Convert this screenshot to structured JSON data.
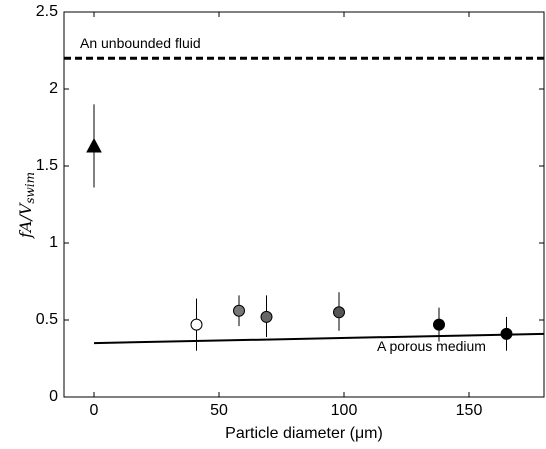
{
  "chart_data": {
    "type": "scatter",
    "xlabel": "Particle diameter (μm)",
    "ylabel": {
      "main": "fA/V",
      "sub": "swim"
    },
    "xlim": [
      -12,
      180
    ],
    "xticks": [
      0,
      50,
      100,
      150
    ],
    "ylim": [
      0,
      2.5
    ],
    "yticks": [
      0,
      0.5,
      1,
      1.5,
      2,
      2.5
    ],
    "x": [
      0,
      41,
      58,
      69,
      98,
      138,
      165
    ],
    "values": [
      1.63,
      0.47,
      0.56,
      0.52,
      0.55,
      0.47,
      0.41
    ],
    "err_low": [
      1.36,
      0.3,
      0.46,
      0.39,
      0.43,
      0.36,
      0.3
    ],
    "err_high": [
      1.9,
      0.64,
      0.66,
      0.66,
      0.68,
      0.58,
      0.52
    ],
    "markers": [
      "triangle",
      "circle",
      "circle",
      "circle",
      "circle",
      "circle",
      "circle"
    ],
    "colors": [
      "#000000",
      "#ffffff",
      "#777777",
      "#666666",
      "#555555",
      "#000000",
      "#000000"
    ],
    "reference": {
      "label": "An unbounded fluid",
      "value": 2.2
    },
    "fit": {
      "label": "A porous medium",
      "x": [
        0,
        180
      ],
      "values": [
        0.35,
        0.41
      ]
    }
  }
}
